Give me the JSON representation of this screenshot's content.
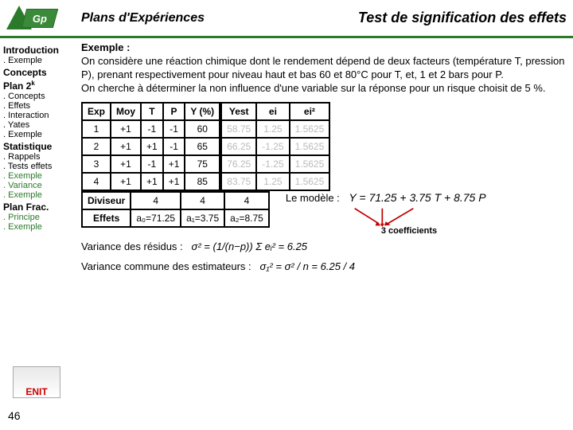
{
  "header": {
    "logo_text": "Gp",
    "breadcrumb": "Plans d'Expériences",
    "title": "Test de signification des effets"
  },
  "sidebar": [
    {
      "label": "Introduction",
      "level": 0,
      "green": false
    },
    {
      "label": "Exemple",
      "level": 1,
      "green": false
    },
    {
      "label": "Concepts",
      "level": 0,
      "green": false
    },
    {
      "label": "Plan 2",
      "sup": "k",
      "level": 0,
      "green": false
    },
    {
      "label": "Concepts",
      "level": 1,
      "green": false
    },
    {
      "label": "Effets",
      "level": 1,
      "green": false
    },
    {
      "label": "Interaction",
      "level": 1,
      "green": false
    },
    {
      "label": "Yates",
      "level": 1,
      "green": false
    },
    {
      "label": "Exemple",
      "level": 1,
      "green": false
    },
    {
      "label": "Statistique",
      "level": 0,
      "green": false
    },
    {
      "label": "Rappels",
      "level": 1,
      "green": false
    },
    {
      "label": "Tests effets",
      "level": 1,
      "green": false
    },
    {
      "label": "Exemple",
      "level": 1,
      "green": true
    },
    {
      "label": "Variance",
      "level": 1,
      "green": true
    },
    {
      "label": "Exemple",
      "level": 1,
      "green": true
    },
    {
      "label": "Plan Frac.",
      "level": 0,
      "green": false
    },
    {
      "label": "Principe",
      "level": 1,
      "green": true
    },
    {
      "label": "Exemple",
      "level": 1,
      "green": true
    }
  ],
  "intro": {
    "heading": "Exemple :",
    "p1": "On considère une réaction chimique dont le rendement dépend de deux facteurs (température T, pression P), prenant respectivement pour niveau haut et bas 60 et 80°C pour T, et, 1 et 2 bars pour P.",
    "p2": "On cherche à déterminer la non influence d'une variable sur la réponse pour un risque choisit de 5 %."
  },
  "table": {
    "headers": [
      "Exp",
      "Moy",
      "T",
      "P",
      "Y (%)",
      "Yest",
      "ei",
      "ei²"
    ],
    "rows": [
      [
        "1",
        "+1",
        "-1",
        "-1",
        "60",
        "58.75",
        "1.25",
        "1.5625"
      ],
      [
        "2",
        "+1",
        "+1",
        "-1",
        "65",
        "66.25",
        "-1.25",
        "1.5625"
      ],
      [
        "3",
        "+1",
        "-1",
        "+1",
        "75",
        "76.25",
        "-1.25",
        "1.5625"
      ],
      [
        "4",
        "+1",
        "+1",
        "+1",
        "85",
        "83.75",
        "1.25",
        "1.5625"
      ]
    ],
    "faded_cols": [
      6,
      7,
      8
    ]
  },
  "lower_table": {
    "rows": [
      [
        "Diviseur",
        "4",
        "4",
        "4"
      ],
      [
        "Effets",
        "a₀=71.25",
        "a₁=3.75",
        "a₂=8.75"
      ]
    ]
  },
  "model": {
    "label": "Le modèle :",
    "equation": "Y = 71.25 + 3.75 T + 8.75 P",
    "coeff_label": "3 coefficients",
    "arrow_color": "#c00000"
  },
  "variance": {
    "line1_label": "Variance des résidus :",
    "line1_eq": "σ² = (1/(n−p)) Σ eᵢ² = 6.25",
    "line2_label": "Variance commune des estimateurs :",
    "line2_eq": "σ₁² = σ² / n = 6.25 / 4"
  },
  "footer": {
    "enit": "ENIT",
    "page": "46"
  },
  "colors": {
    "green": "#2a7a2a",
    "red": "#c00000",
    "faded": "#bbbbbb"
  }
}
